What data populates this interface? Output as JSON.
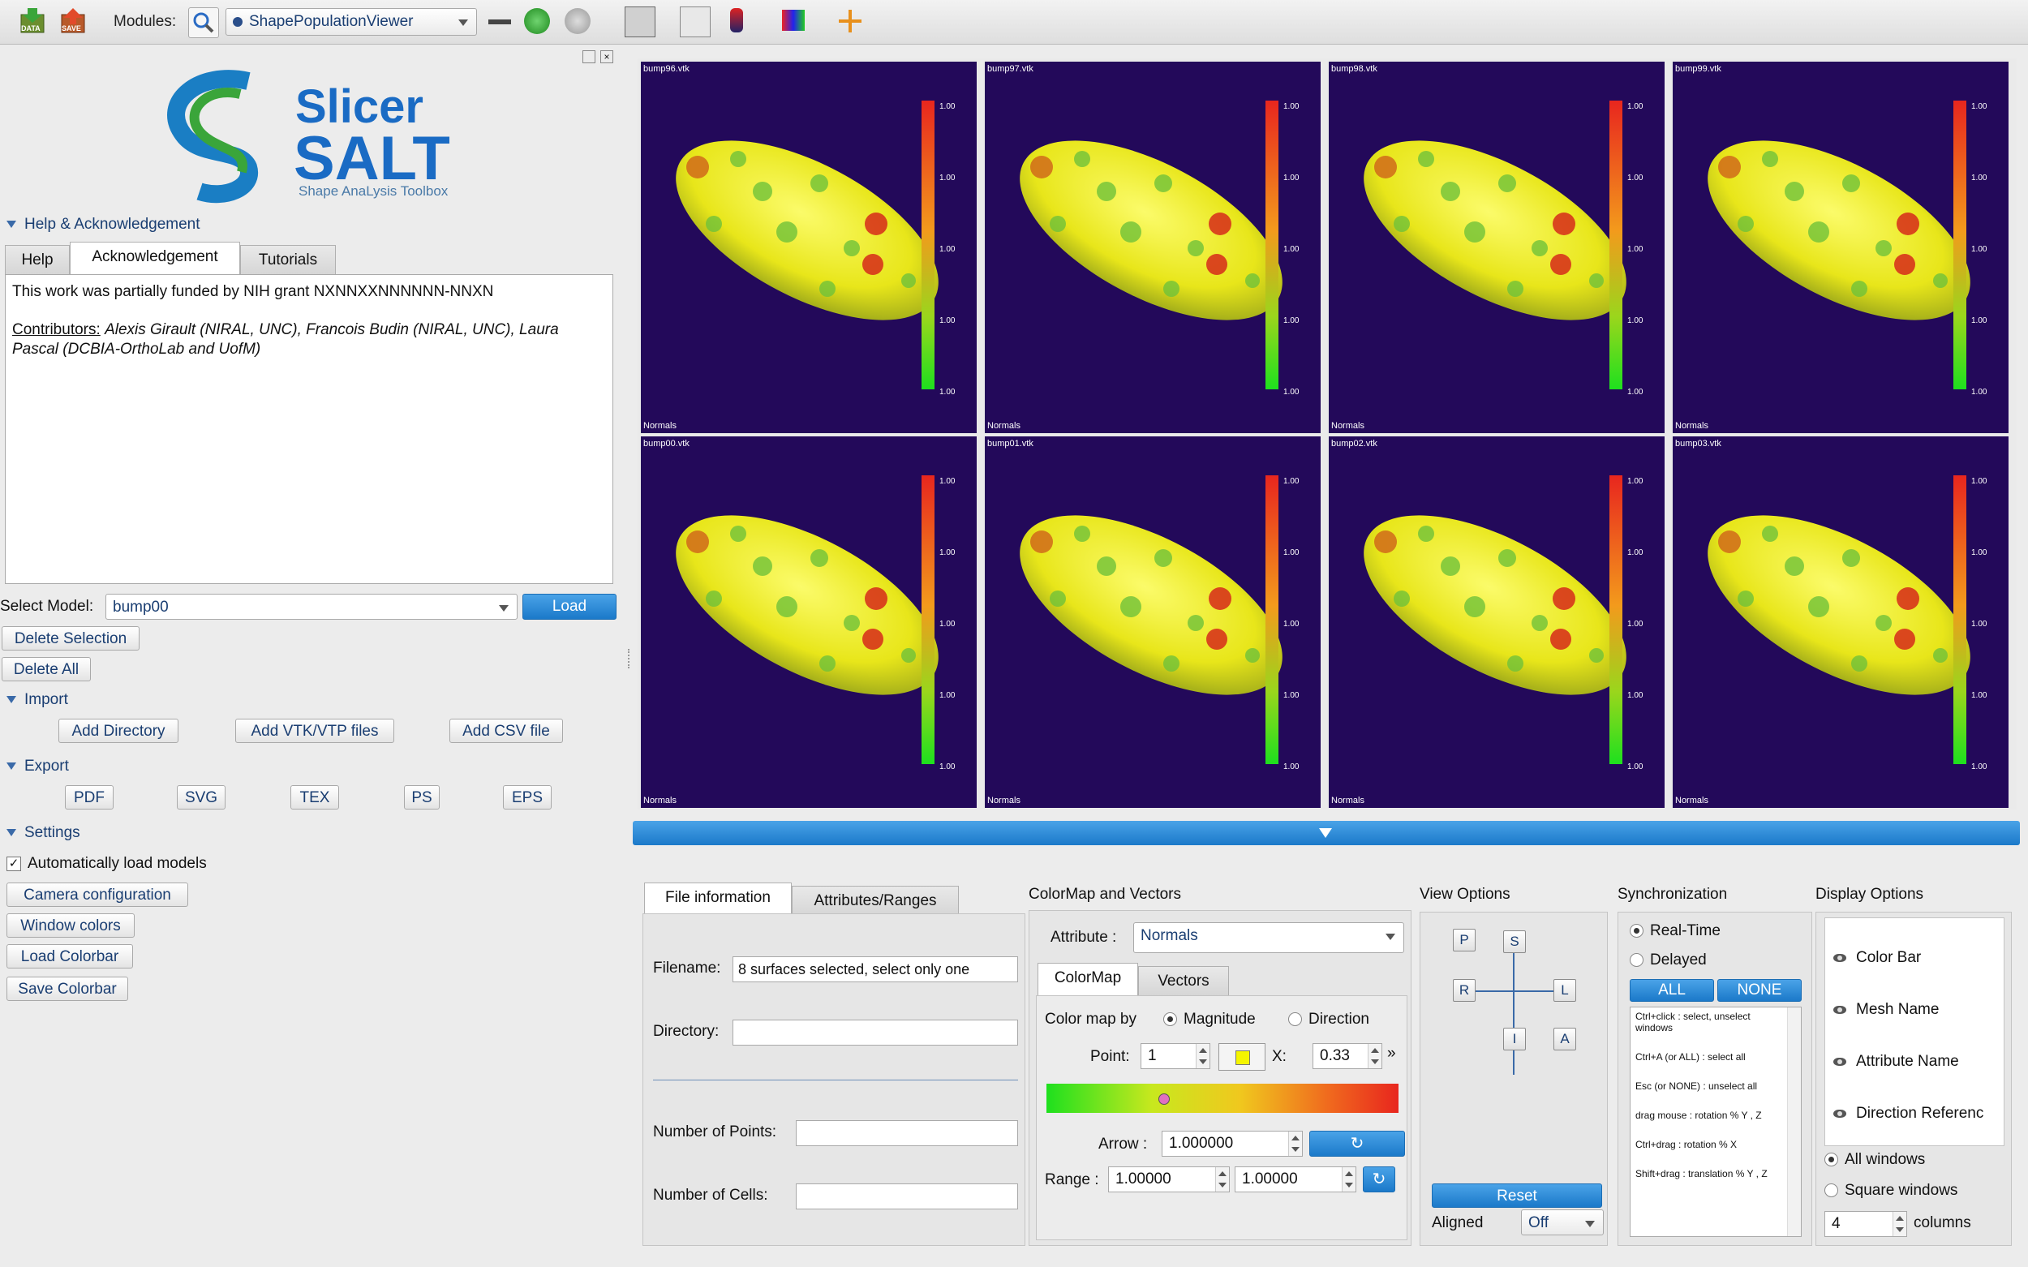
{
  "toolbar": {
    "data_label": "DATA",
    "save_label": "SAVE",
    "modules_label": "Modules:",
    "module_selected": "ShapePopulationViewer"
  },
  "logo": {
    "line1": "Slicer",
    "line2": "SALT",
    "tagline": "Shape AnaLysis Toolbox"
  },
  "help": {
    "section_title": "Help & Acknowledgement",
    "tabs": [
      "Help",
      "Acknowledgement",
      "Tutorials"
    ],
    "funding_text": "This work was partially funded by NIH grant NXNNXXNNNNNN-NNXN",
    "contributors_label": "Contributors:",
    "contributors_text": "Alexis Girault (NIRAL, UNC), Francois Budin (NIRAL, UNC), Laura",
    "contributors_text2": "Pascal (DCBIA-OrthoLab and UofM)"
  },
  "model": {
    "select_label": "Select Model:",
    "selected": "bump00",
    "load_label": "Load",
    "delete_selection": "Delete Selection",
    "delete_all": "Delete All"
  },
  "import": {
    "title": "Import",
    "add_directory": "Add Directory",
    "add_vtk": "Add VTK/VTP files",
    "add_csv": "Add CSV file"
  },
  "export": {
    "title": "Export",
    "formats": [
      "PDF",
      "SVG",
      "TEX",
      "PS",
      "EPS"
    ]
  },
  "settings": {
    "title": "Settings",
    "auto_load": "Automatically load models",
    "camera": "Camera configuration",
    "window_colors": "Window colors",
    "load_colorbar": "Load Colorbar",
    "save_colorbar": "Save Colorbar"
  },
  "viewers": [
    {
      "name": "bump96.vtk",
      "footer": "Normals"
    },
    {
      "name": "bump97.vtk",
      "footer": "Normals"
    },
    {
      "name": "bump98.vtk",
      "footer": "Normals"
    },
    {
      "name": "bump99.vtk",
      "footer": "Normals"
    },
    {
      "name": "bump00.vtk",
      "footer": "Normals"
    },
    {
      "name": "bump01.vtk",
      "footer": "Normals"
    },
    {
      "name": "bump02.vtk",
      "footer": "Normals"
    },
    {
      "name": "bump03.vtk",
      "footer": "Normals"
    }
  ],
  "colorbar_ticks": [
    "1.00",
    "1.00",
    "1.00",
    "1.00",
    "1.00"
  ],
  "fileinfo": {
    "tabs": [
      "File information",
      "Attributes/Ranges"
    ],
    "filename_label": "Filename:",
    "filename_value": "8 surfaces selected, select only one",
    "directory_label": "Directory:",
    "points_label": "Number of Points:",
    "cells_label": "Number of Cells:"
  },
  "colormap": {
    "title": "ColorMap and Vectors",
    "attribute_label": "Attribute :",
    "attribute_value": "Normals",
    "tabs": [
      "ColorMap",
      "Vectors"
    ],
    "colormap_by": "Color map by",
    "magnitude": "Magnitude",
    "direction": "Direction",
    "point_label": "Point:",
    "point_value": "1",
    "x_label": "X:",
    "x_value": "0.33",
    "more": "»",
    "arrow_label": "Arrow :",
    "arrow_value": "1.000000",
    "range_label": "Range :",
    "range_min": "1.00000",
    "range_max": "1.00000"
  },
  "view_options": {
    "title": "View Options",
    "p": "P",
    "s": "S",
    "r": "R",
    "l": "L",
    "i": "I",
    "a": "A",
    "reset": "Reset",
    "aligned_label": "Aligned",
    "aligned_value": "Off"
  },
  "sync": {
    "title": "Synchronization",
    "realtime": "Real-Time",
    "delayed": "Delayed",
    "all": "ALL",
    "none": "NONE",
    "help_lines": [
      "Ctrl+click : select, unselect windows",
      "Ctrl+A (or ALL) : select all",
      "Esc (or NONE) : unselect all",
      "drag mouse : rotation % Y , Z",
      "Ctrl+drag : rotation % X",
      "Shift+drag : translation % Y , Z"
    ]
  },
  "display": {
    "title": "Display Options",
    "items": [
      "Color Bar",
      "Mesh Name",
      "Attribute Name",
      "Direction Referenc"
    ],
    "all_windows": "All windows",
    "square_windows": "Square windows",
    "columns_value": "4",
    "columns_label": "columns"
  }
}
